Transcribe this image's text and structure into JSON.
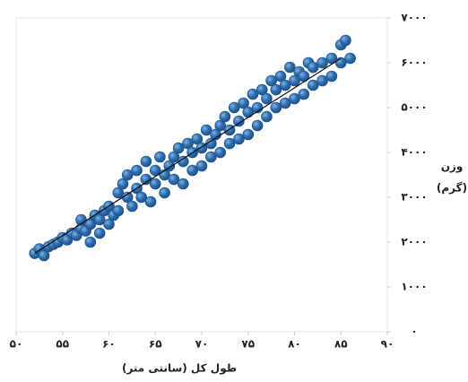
{
  "chart_data": {
    "type": "scatter",
    "x_label": "طول کل (سانتی متر)",
    "y_label": [
      "وزن",
      "(گرم)"
    ],
    "color": "#2e6fb0",
    "x": [
      52,
      52.5,
      53,
      53.5,
      54,
      54.5,
      55,
      55.5,
      56,
      56.5,
      57,
      57,
      57.5,
      58,
      58,
      58.5,
      59,
      59,
      59.5,
      60,
      60,
      60.5,
      61,
      61,
      61.5,
      62,
      62,
      62.5,
      63,
      63,
      63.5,
      64,
      64,
      64.5,
      65,
      65,
      65.5,
      66,
      66,
      66.5,
      67,
      67,
      67.5,
      68,
      68,
      68.5,
      69,
      69,
      69.5,
      70,
      70,
      70.5,
      71,
      71,
      71.5,
      72,
      72,
      72.5,
      73,
      73,
      73.5,
      74,
      74,
      74.5,
      75,
      75,
      75.5,
      76,
      76,
      76.5,
      77,
      77,
      77.5,
      78,
      78,
      78.5,
      79,
      79,
      79.5,
      80,
      80,
      80.5,
      81,
      81,
      81.5,
      82,
      82,
      83,
      83,
      84,
      84,
      85,
      85,
      85.5,
      86
    ],
    "values": [
      1750,
      1850,
      1700,
      1900,
      1950,
      2000,
      2100,
      2050,
      2200,
      2150,
      2300,
      2500,
      2250,
      2400,
      2000,
      2600,
      2500,
      2200,
      2700,
      2800,
      2400,
      2600,
      3100,
      2700,
      3300,
      3000,
      3500,
      2800,
      3200,
      3600,
      3000,
      3400,
      3800,
      2900,
      3600,
      3300,
      3900,
      3500,
      3100,
      3700,
      3900,
      3400,
      4100,
      3800,
      3300,
      4200,
      4000,
      3600,
      4300,
      4100,
      3700,
      4500,
      4200,
      3900,
      4400,
      4600,
      4000,
      4800,
      4500,
      4200,
      5000,
      4700,
      4300,
      5100,
      4900,
      4400,
      5300,
      5000,
      4600,
      5400,
      5200,
      4800,
      5600,
      5400,
      5000,
      5700,
      5500,
      5100,
      5900,
      5600,
      5200,
      5800,
      5700,
      5300,
      6000,
      5900,
      5500,
      6000,
      5600,
      6100,
      5700,
      6400,
      6000,
      6500,
      6100
    ],
    "trend_line": {
      "x": [
        52,
        85
      ],
      "y": [
        1750,
        6100
      ]
    },
    "xlim": [
      50,
      90
    ],
    "ylim": [
      0,
      7000
    ],
    "xticks": [
      {
        "value": 50,
        "label": "۵۰"
      },
      {
        "value": 55,
        "label": "۵۵"
      },
      {
        "value": 60,
        "label": "۶۰"
      },
      {
        "value": 65,
        "label": "۶۵"
      },
      {
        "value": 70,
        "label": "۷۰"
      },
      {
        "value": 75,
        "label": "۷۵"
      },
      {
        "value": 80,
        "label": "۸۰"
      },
      {
        "value": 85,
        "label": "۸۵"
      },
      {
        "value": 90,
        "label": "۹۰"
      }
    ],
    "yticks": [
      {
        "value": 0,
        "label": "۰"
      },
      {
        "value": 1000,
        "label": "۱۰۰۰"
      },
      {
        "value": 2000,
        "label": "۲۰۰۰"
      },
      {
        "value": 3000,
        "label": "۳۰۰۰"
      },
      {
        "value": 4000,
        "label": "۴۰۰۰"
      },
      {
        "value": 5000,
        "label": "۵۰۰۰"
      },
      {
        "value": 6000,
        "label": "۶۰۰۰"
      },
      {
        "value": 7000,
        "label": "۷۰۰۰"
      }
    ]
  }
}
